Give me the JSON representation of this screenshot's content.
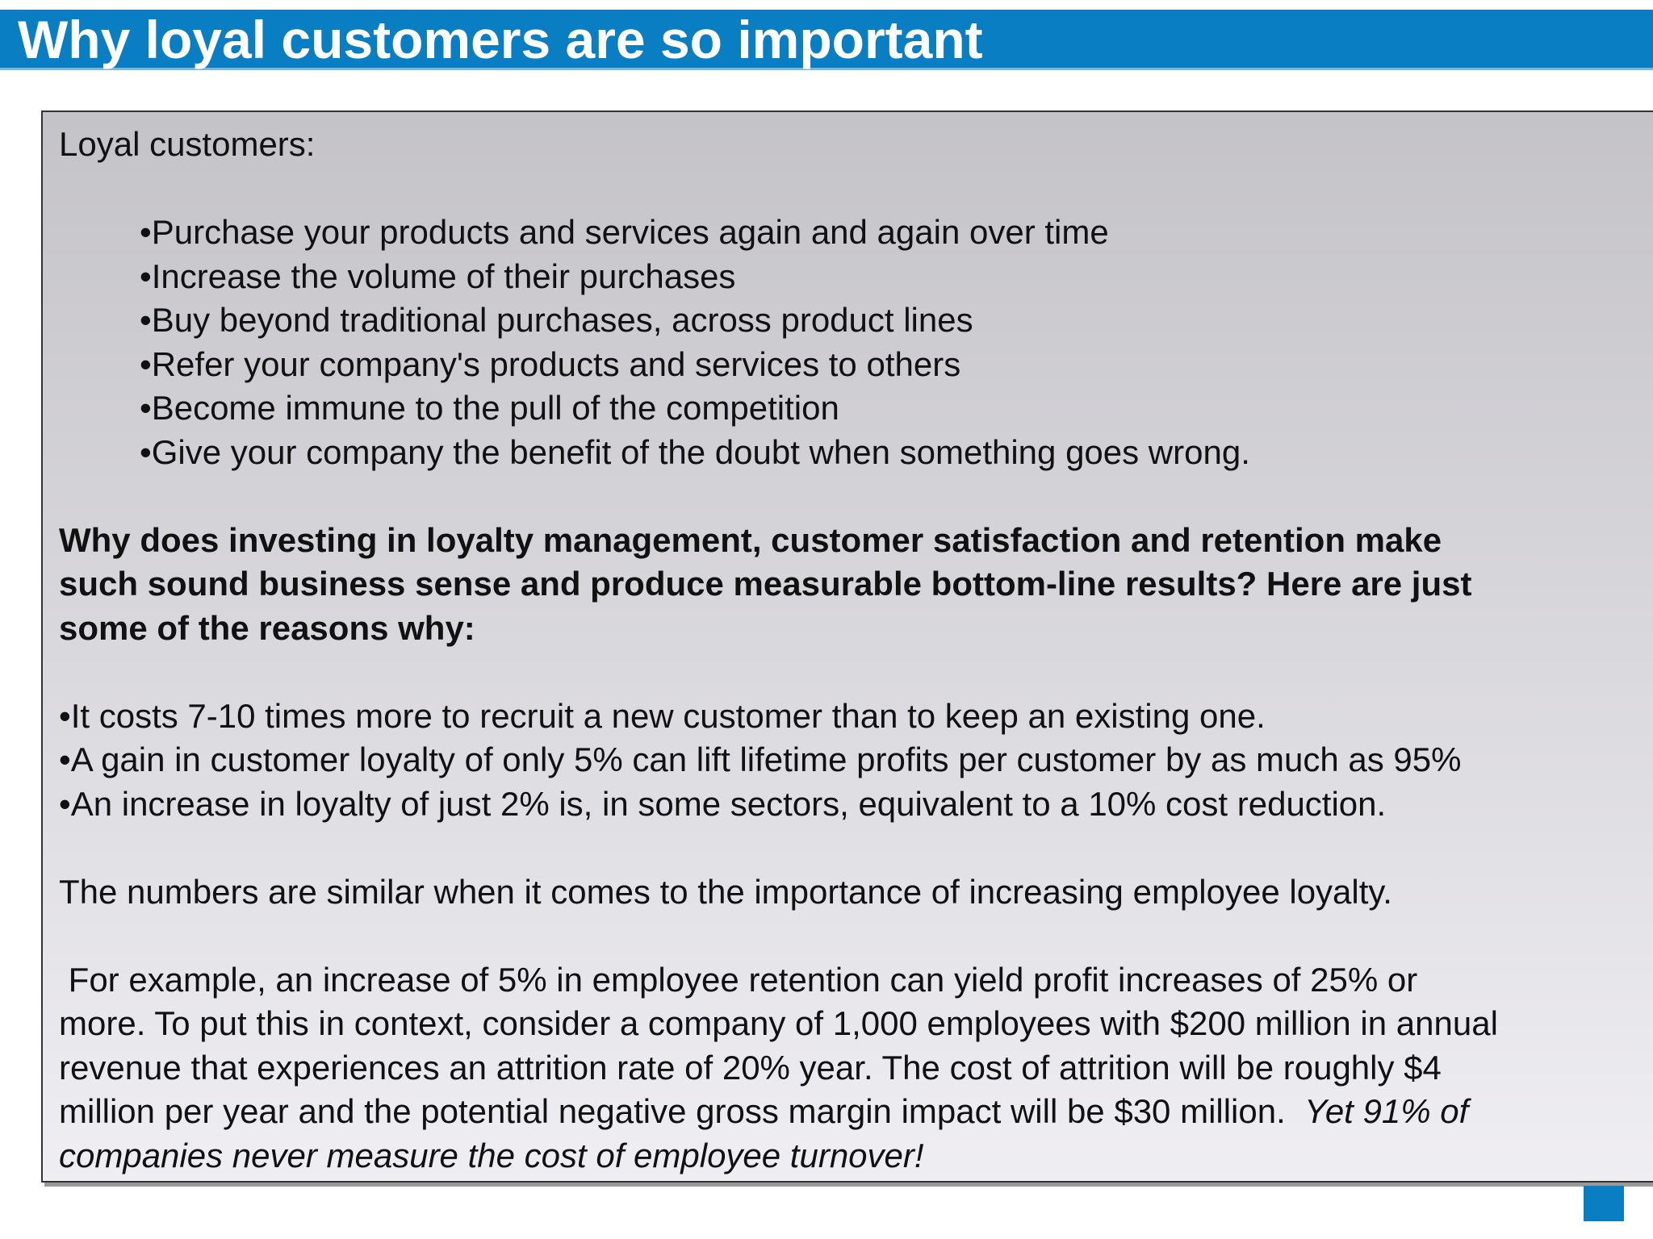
{
  "title": "Why loyal customers are so important",
  "accent_color": "#0a7ec2",
  "intro": "Loyal customers:",
  "loyal_bullets": [
    "•Purchase your products and services again and again over time",
    "•Increase the volume of their purchases",
    "•Buy beyond traditional purchases, across product lines",
    "•Refer your company's products and services to others",
    "•Become immune to the pull of the competition",
    "•Give your company the benefit of the doubt when something goes wrong."
  ],
  "question_lines": [
    "Why does investing in loyalty management, customer satisfaction and retention make",
    "such sound business sense and produce measurable bottom-line results?  Here are just",
    "some of the reasons why:"
  ],
  "reason_bullets": [
    "•It costs 7-10 times more to recruit a new customer than to keep an existing one.",
    "•A gain in customer loyalty of only 5% can lift lifetime profits per customer by as much as 95%",
    "•An increase in loyalty of just 2% is, in some sectors, equivalent to a 10% cost reduction."
  ],
  "employee_note": "The numbers are similar when it comes to the importance of increasing employee loyalty.",
  "example_lines": [
    " For example, an increase of 5% in employee retention can yield profit increases of 25% or",
    "more.  To put this in context, consider a company of 1,000 employees with $200 million in annual",
    "revenue that experiences an attrition rate of 20% year.  The cost of attrition will be roughly $4"
  ],
  "example_last_line_normal": "million per year and the potential negative gross margin impact will be $30 million.  ",
  "example_last_line_italic": "Yet 91% of",
  "closing_italic_line": "companies never measure the cost of employee turnover!"
}
